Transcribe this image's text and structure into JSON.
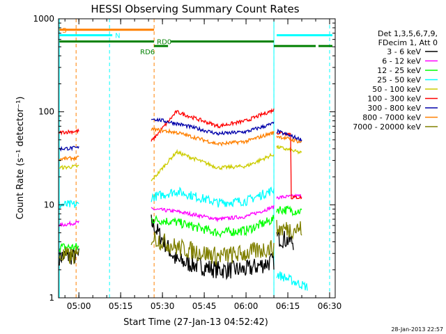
{
  "chart_data": {
    "type": "line",
    "title": "HESSI Observing Summary Count Rates",
    "xlabel": "Start Time (27-Jan-13 04:52:42)",
    "ylabel": "Count Rate (s⁻¹ detector⁻¹)",
    "yscale": "log",
    "ylim": [
      1,
      1000
    ],
    "xlim": [
      "04:52:42",
      "06:32:00"
    ],
    "x_ticks": [
      "05:00",
      "05:15",
      "05:30",
      "05:45",
      "06:00",
      "06:15",
      "06:30"
    ],
    "y_ticks": [
      "1",
      "10",
      "100",
      "1000"
    ],
    "legend_header": [
      "Det 1,3,5,6,7,9,",
      "FDecim 1, Att 0"
    ],
    "series": [
      {
        "name": "3 - 6 keV",
        "color": "#000000",
        "segments": [
          [
            [
              "04:53",
              2.8
            ],
            [
              "05:00",
              2.8
            ]
          ],
          [
            [
              "05:26",
              6.5
            ],
            [
              "05:35",
              2.5
            ],
            [
              "05:50",
              2.0
            ],
            [
              "06:00",
              2.0
            ],
            [
              "06:10",
              2.5
            ]
          ],
          [
            [
              "06:11",
              4.5
            ],
            [
              "06:17",
              4.0
            ]
          ]
        ]
      },
      {
        "name": "6 - 12 keV",
        "color": "#ff00ff",
        "segments": [
          [
            [
              "04:53",
              6.0
            ],
            [
              "05:00",
              6.5
            ]
          ],
          [
            [
              "05:26",
              9.0
            ],
            [
              "05:35",
              8.5
            ],
            [
              "05:50",
              7.0
            ],
            [
              "06:00",
              7.5
            ],
            [
              "06:10",
              9.5
            ]
          ],
          [
            [
              "06:11",
              12.0
            ],
            [
              "06:20",
              12.5
            ]
          ]
        ]
      },
      {
        "name": "12 - 25 keV",
        "color": "#00ff00",
        "segments": [
          [
            [
              "04:53",
              3.5
            ],
            [
              "05:00",
              3.5
            ]
          ],
          [
            [
              "05:26",
              7.0
            ],
            [
              "05:35",
              6.5
            ],
            [
              "05:50",
              5.0
            ],
            [
              "06:00",
              5.3
            ],
            [
              "06:10",
              7.0
            ]
          ],
          [
            [
              "06:11",
              9.0
            ],
            [
              "06:20",
              8.5
            ]
          ]
        ]
      },
      {
        "name": "25 - 50 keV",
        "color": "#00ffff",
        "segments": [
          [
            [
              "04:53",
              10.0
            ],
            [
              "05:00",
              10.0
            ]
          ],
          [
            [
              "05:26",
              12.0
            ],
            [
              "05:35",
              14.0
            ],
            [
              "05:50",
              10.5
            ],
            [
              "06:00",
              11.0
            ],
            [
              "06:10",
              14.5
            ]
          ],
          [
            [
              "06:11",
              1.8
            ],
            [
              "06:22",
              1.3
            ]
          ]
        ]
      },
      {
        "name": "50 - 100 keV",
        "color": "#cccc00",
        "segments": [
          [
            [
              "04:53",
              25.0
            ],
            [
              "05:00",
              26.0
            ]
          ],
          [
            [
              "05:26",
              18.0
            ],
            [
              "05:35",
              37.0
            ],
            [
              "05:50",
              25.0
            ],
            [
              "06:00",
              26.0
            ],
            [
              "06:10",
              35.0
            ]
          ],
          [
            [
              "06:11",
              42.0
            ],
            [
              "06:20",
              36.0
            ]
          ]
        ]
      },
      {
        "name": "100 - 300 keV",
        "color": "#ff0000",
        "segments": [
          [
            [
              "04:53",
              60.0
            ],
            [
              "05:00",
              62.0
            ]
          ],
          [
            [
              "05:26",
              48.0
            ],
            [
              "05:35",
              100.0
            ],
            [
              "05:50",
              70.0
            ],
            [
              "06:00",
              80.0
            ],
            [
              "06:10",
              105.0
            ]
          ],
          [
            [
              "06:11",
              60.0
            ],
            [
              "06:16",
              58.0
            ],
            [
              "06:16",
              12.0
            ],
            [
              "06:20",
              12.0
            ]
          ]
        ]
      },
      {
        "name": "300 - 800 keV",
        "color": "#0000aa",
        "segments": [
          [
            [
              "04:53",
              40.0
            ],
            [
              "05:00",
              41.0
            ]
          ],
          [
            [
              "05:26",
              85.0
            ],
            [
              "05:35",
              75.0
            ],
            [
              "05:50",
              58.0
            ],
            [
              "06:00",
              61.0
            ],
            [
              "06:10",
              75.0
            ]
          ],
          [
            [
              "06:11",
              62.0
            ],
            [
              "06:20",
              50.0
            ]
          ]
        ]
      },
      {
        "name": "800 - 7000 keV",
        "color": "#ff8000",
        "segments": [
          [
            [
              "04:53",
              31.0
            ],
            [
              "05:00",
              32.0
            ]
          ],
          [
            [
              "05:26",
              65.0
            ],
            [
              "05:35",
              60.0
            ],
            [
              "05:50",
              45.0
            ],
            [
              "06:00",
              48.0
            ],
            [
              "06:10",
              60.0
            ]
          ],
          [
            [
              "06:11",
              55.0
            ],
            [
              "06:20",
              47.0
            ]
          ]
        ]
      },
      {
        "name": "7000 - 20000 keV",
        "color": "#808000",
        "segments": [
          [
            [
              "04:53",
              2.8
            ],
            [
              "05:00",
              2.8
            ]
          ],
          [
            [
              "05:26",
              4.5
            ],
            [
              "05:35",
              3.5
            ],
            [
              "05:50",
              2.8
            ],
            [
              "06:00",
              3.0
            ],
            [
              "06:10",
              3.5
            ]
          ],
          [
            [
              "06:11",
              5.5
            ],
            [
              "06:20",
              5.5
            ]
          ]
        ]
      }
    ],
    "flags": [
      {
        "label": "S",
        "color": "#ff8000",
        "y": 762,
        "segments": [
          [
            "04:53",
            "05:27"
          ]
        ],
        "label_at": "04:54"
      },
      {
        "label": "N",
        "color": "#00ffff",
        "y": 665,
        "segments": [
          [
            "04:53",
            "05:12"
          ],
          [
            "06:11",
            "06:31"
          ]
        ],
        "label_at": "05:13"
      },
      {
        "label": "RD0",
        "color": "#008000",
        "y": 570,
        "segments": [
          [
            "04:53",
            "05:27"
          ],
          [
            "05:33",
            "06:10"
          ]
        ],
        "label_at": "05:28"
      },
      {
        "label": "RD6",
        "color": "#008000",
        "y": 510,
        "segments": [
          [
            "05:27",
            "05:32"
          ],
          [
            "06:10",
            "06:25"
          ],
          [
            "06:26",
            "06:31"
          ]
        ],
        "label_at": "05:22"
      }
    ],
    "vlines": [
      {
        "x": "04:59",
        "color": "#ff8000"
      },
      {
        "x": "05:27",
        "color": "#ff8000"
      },
      {
        "x": "05:11",
        "color": "#00ffff"
      },
      {
        "x": "06:10",
        "color": "#00ffff"
      },
      {
        "x": "06:30",
        "color": "#00ffff"
      }
    ],
    "solid_vlines": [
      {
        "x": "04:53",
        "color": "#00ffff"
      },
      {
        "x": "06:10",
        "color": "#00ffff"
      }
    ],
    "grid": false
  },
  "footer": {
    "timestamp": "28-Jan-2013 22:57"
  }
}
